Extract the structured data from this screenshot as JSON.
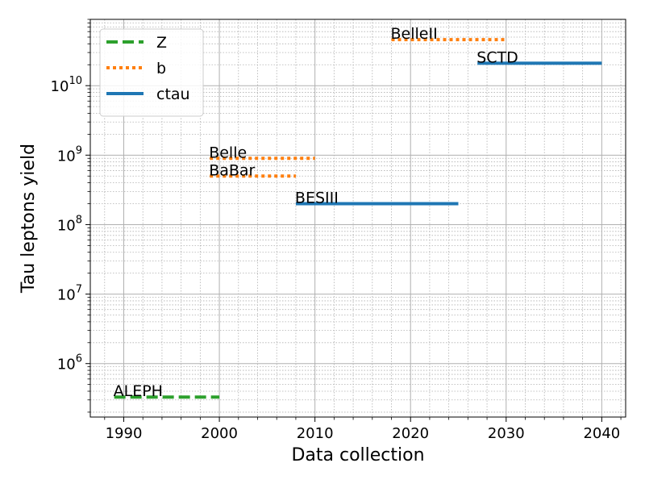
{
  "chart_data": {
    "type": "line",
    "xlabel": "Data collection",
    "ylabel": "Tau leptons yield",
    "xlim": [
      1986.5,
      2042.5
    ],
    "ylim": [
      170000.0,
      90000000000.0
    ],
    "y_scale": "log",
    "grid": true,
    "legend_placement": "top-left",
    "x_ticks": [
      1990,
      2000,
      2010,
      2020,
      2030,
      2040
    ],
    "y_ticks": [
      {
        "value": 1000000.0,
        "base": "10",
        "exp": "6"
      },
      {
        "value": 10000000.0,
        "base": "10",
        "exp": "7"
      },
      {
        "value": 100000000.0,
        "base": "10",
        "exp": "8"
      },
      {
        "value": 1000000000.0,
        "base": "10",
        "exp": "9"
      },
      {
        "value": 10000000000.0,
        "base": "10",
        "exp": "10"
      }
    ],
    "legend": [
      {
        "name": "Z",
        "style": "dashed",
        "color": "#2ca02c"
      },
      {
        "name": "b",
        "style": "dotted",
        "color": "#ff7f0e"
      },
      {
        "name": "ctau",
        "style": "solid",
        "color": "#1f77b4"
      }
    ],
    "segments": [
      {
        "label": "ALEPH",
        "series": "Z",
        "x_start": 1989,
        "x_end": 2000,
        "y": 330000.0
      },
      {
        "label": "Belle",
        "series": "b",
        "x_start": 1999,
        "x_end": 2010,
        "y": 900000000.0
      },
      {
        "label": "BaBar",
        "series": "b",
        "x_start": 1999,
        "x_end": 2008,
        "y": 500000000.0
      },
      {
        "label": "BESIII",
        "series": "ctau",
        "x_start": 2008,
        "x_end": 2025,
        "y": 200000000.0
      },
      {
        "label": "BelleII",
        "series": "b",
        "x_start": 2018,
        "x_end": 2030,
        "y": 46000000000.0
      },
      {
        "label": "SCTD",
        "series": "ctau",
        "x_start": 2027,
        "x_end": 2040,
        "y": 21000000000.0
      }
    ]
  }
}
